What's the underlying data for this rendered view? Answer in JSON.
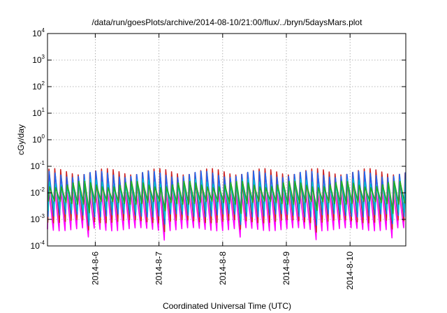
{
  "chart_data": {
    "type": "line",
    "title": "/data/run/goesPlots/archive/2014-08-10/21:00/flux/../bryn/5daysMars.plot",
    "xlabel": "Coordinated Universal Time (UTC)",
    "ylabel": "cGy/day",
    "yscale": "log",
    "grid": true,
    "ylim": [
      0.0001,
      10000
    ],
    "xlim": [
      "2014-08-05T06:00",
      "2014-08-10T21:00"
    ],
    "y_ticks": [
      {
        "base": "10",
        "exp": "-4",
        "value": 0.0001
      },
      {
        "base": "10",
        "exp": "-3",
        "value": 0.001
      },
      {
        "base": "10",
        "exp": "-2",
        "value": 0.01
      },
      {
        "base": "10",
        "exp": "-1",
        "value": 0.1
      },
      {
        "base": "10",
        "exp": "0",
        "value": 1
      },
      {
        "base": "10",
        "exp": "1",
        "value": 10
      },
      {
        "base": "10",
        "exp": "2",
        "value": 100
      },
      {
        "base": "10",
        "exp": "3",
        "value": 1000
      },
      {
        "base": "10",
        "exp": "4",
        "value": 10000
      }
    ],
    "x_ticks": [
      {
        "label": "2014-8-6",
        "value": "2014-08-06T00:00"
      },
      {
        "label": "2014-8-7",
        "value": "2014-08-07T00:00"
      },
      {
        "label": "2014-8-8",
        "value": "2014-08-08T00:00"
      },
      {
        "label": "2014-8-9",
        "value": "2014-08-09T00:00"
      },
      {
        "label": "2014-8-10",
        "value": "2014-08-10T00:00"
      }
    ],
    "series": [
      {
        "color": "#ff00ff",
        "y_range": [
          0.0003,
          0.018
        ]
      },
      {
        "color": "#cc2222",
        "y_range": [
          0.0006,
          0.075
        ]
      },
      {
        "color": "#2266ee",
        "y_range": [
          0.001,
          0.06
        ]
      },
      {
        "color": "#00bbcc",
        "y_range": [
          0.0015,
          0.03
        ]
      },
      {
        "color": "#22aa22",
        "y_range": [
          0.003,
          0.025
        ]
      }
    ]
  }
}
